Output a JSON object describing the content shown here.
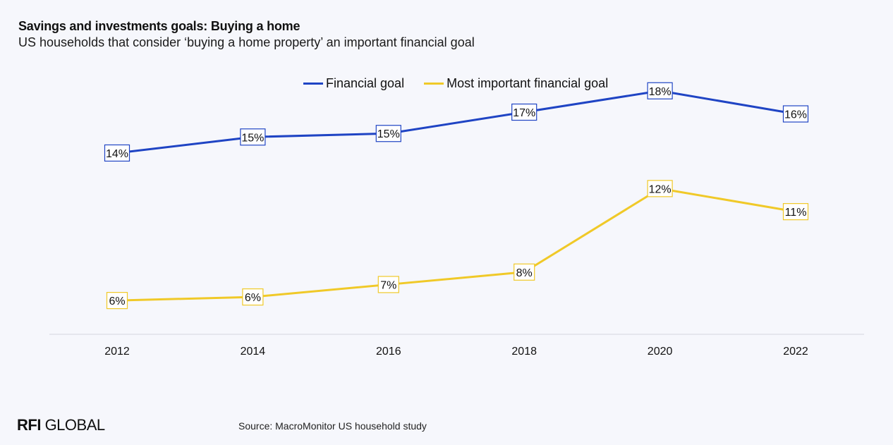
{
  "header": {
    "title": "Savings and investments goals: Buying a home",
    "subtitle": "US households that consider ‘buying a home property’ an important financial goal"
  },
  "chart_data": {
    "type": "line",
    "x": [
      "2012",
      "2014",
      "2016",
      "2018",
      "2020",
      "2022"
    ],
    "series": [
      {
        "name": "Financial goal",
        "color": "#1f44c4",
        "values": [
          14,
          15,
          15,
          17,
          18,
          16
        ],
        "labels": [
          "14%",
          "15%",
          "15%",
          "17%",
          "18%",
          "16%"
        ],
        "plot_values": [
          14.2,
          15.1,
          15.3,
          16.5,
          17.7,
          16.4
        ]
      },
      {
        "name": "Most important financial goal",
        "color": "#f0c928",
        "values": [
          6,
          6,
          7,
          8,
          12,
          11
        ],
        "labels": [
          "6%",
          "6%",
          "7%",
          "8%",
          "12%",
          "11%"
        ],
        "plot_values": [
          5.9,
          6.1,
          6.8,
          7.5,
          12.2,
          10.9
        ]
      }
    ],
    "title": "Savings and investments goals: Buying a home",
    "xlabel": "",
    "ylabel": "",
    "ylim": [
      0,
      20
    ],
    "grid": false,
    "legend": "top-center"
  },
  "footer": {
    "logo_bold": "RFI",
    "logo_rest": " GLOBAL",
    "source": "Source: MacroMonitor US household study"
  }
}
